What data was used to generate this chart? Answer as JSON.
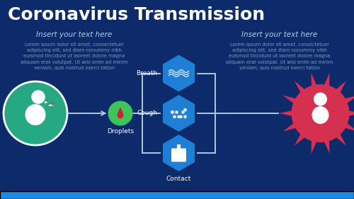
{
  "bg_color": "#0d2b6b",
  "title": "Coronavirus Transmission",
  "title_color": "#ffffff",
  "title_fontsize": 18,
  "left_heading": "Insert your text here",
  "right_heading": "Insert your text here",
  "heading_color": "#b8cce4",
  "heading_fontsize": 7.5,
  "lorem_text": "Lorem ipsum dolor sit amet, consectetuer\nadipiscing elit, sed diam nonummy nibh\neuismod tincidunt ut laoreet dolore magna\naliquam erat volutpat. Ut wisi enim ad minim\nveniam, quis nostrud exerci tation",
  "lorem_color": "#7a9cc0",
  "lorem_fontsize": 4.8,
  "label_color": "#ffffff",
  "label_fontsize": 6.5,
  "hex_color": "#1e7fd4",
  "hex_dark_color": "#1560a8",
  "green_circle_color": "#26a882",
  "green_circle_border": "#ffffff",
  "droplet_circle_color": "#3dc45a",
  "droplet_red": "#d42030",
  "virus_color": "#d63050",
  "virus_spike_color": "#d63050",
  "connector_color": "#b0c8e0",
  "bottom_bar_color": "#1e88e5",
  "icon_color": "#ffffff",
  "breath_label": "Breath",
  "cough_label": "Cough",
  "contact_label": "Contact",
  "droplets_label": "Droplets"
}
